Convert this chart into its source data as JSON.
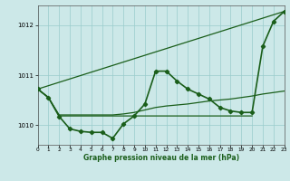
{
  "title": "Graphe pression niveau de la mer (hPa)",
  "background_color": "#cce8e8",
  "grid_color": "#99cccc",
  "line_color": "#1a5e1a",
  "xlim": [
    0,
    23
  ],
  "ylim": [
    1009.6,
    1012.4
  ],
  "yticks": [
    1010,
    1011,
    1012
  ],
  "xticks": [
    0,
    1,
    2,
    3,
    4,
    5,
    6,
    7,
    8,
    9,
    10,
    11,
    12,
    13,
    14,
    15,
    16,
    17,
    18,
    19,
    20,
    21,
    22,
    23
  ],
  "series": [
    {
      "x": [
        0,
        1,
        2,
        3,
        4,
        5,
        6,
        7,
        8,
        9,
        10,
        11,
        12,
        13,
        14,
        15,
        16,
        17,
        18,
        19,
        20,
        21,
        22,
        23
      ],
      "y": [
        1010.72,
        1010.55,
        1010.17,
        1009.92,
        1009.87,
        1009.85,
        1009.85,
        1009.73,
        1010.02,
        1010.18,
        1010.42,
        1011.08,
        1011.08,
        1010.88,
        1010.72,
        1010.62,
        1010.52,
        1010.35,
        1010.28,
        1010.25,
        1010.25,
        1011.58,
        1012.08,
        1012.28
      ],
      "marker": true,
      "lw": 1.2
    },
    {
      "x": [
        0,
        23
      ],
      "y": [
        1010.72,
        1012.28
      ],
      "marker": false,
      "lw": 0.9
    },
    {
      "x": [
        0,
        1,
        2,
        3,
        4,
        5,
        6,
        7,
        8,
        9,
        10,
        11,
        12,
        13,
        14,
        15,
        16,
        17,
        18,
        19,
        20
      ],
      "y": [
        1010.72,
        1010.55,
        1010.18,
        1010.18,
        1010.18,
        1010.18,
        1010.18,
        1010.18,
        1010.18,
        1010.18,
        1010.18,
        1010.18,
        1010.18,
        1010.18,
        1010.18,
        1010.18,
        1010.18,
        1010.18,
        1010.18,
        1010.18,
        1010.18
      ],
      "marker": false,
      "lw": 0.9
    },
    {
      "x": [
        0,
        1,
        2,
        3,
        4,
        5,
        6,
        7,
        8,
        9,
        10,
        11,
        12,
        13,
        14,
        15,
        16,
        17,
        18,
        19,
        20,
        21,
        22,
        23
      ],
      "y": [
        1010.72,
        1010.55,
        1010.2,
        1010.2,
        1010.2,
        1010.2,
        1010.2,
        1010.2,
        1010.22,
        1010.25,
        1010.3,
        1010.35,
        1010.38,
        1010.4,
        1010.42,
        1010.45,
        1010.48,
        1010.5,
        1010.52,
        1010.55,
        1010.58,
        1010.62,
        1010.65,
        1010.68
      ],
      "marker": false,
      "lw": 0.9
    }
  ]
}
